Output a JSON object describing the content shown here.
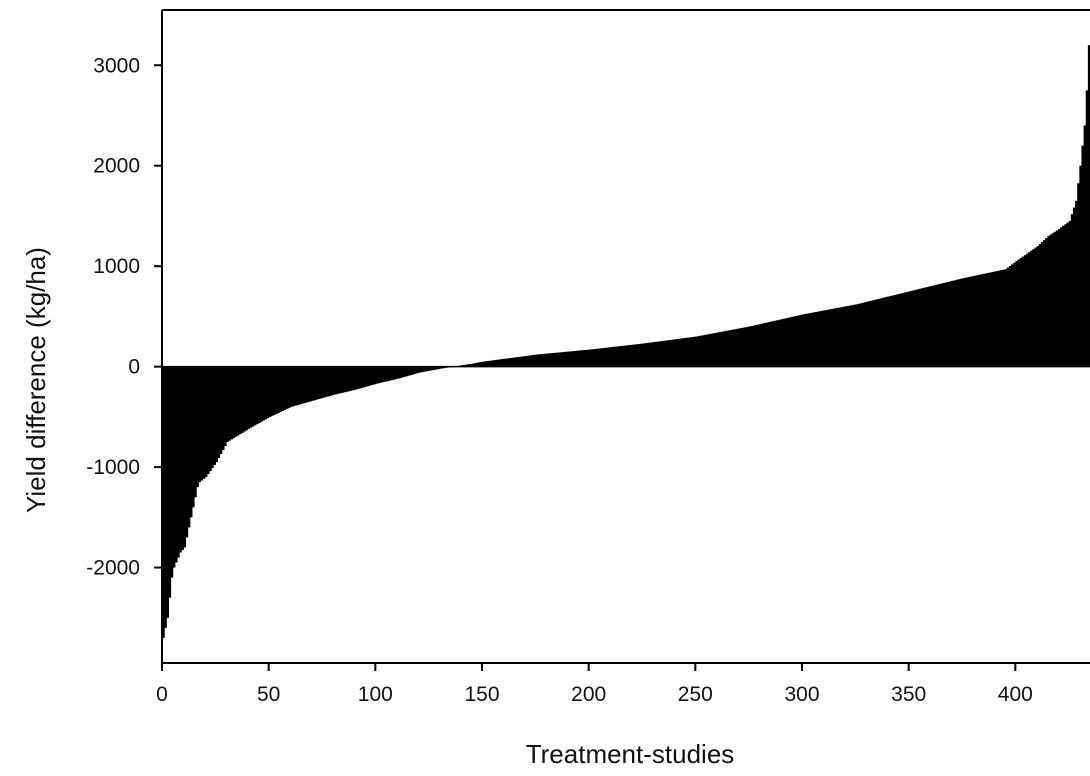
{
  "chart_data": {
    "type": "bar",
    "title": "",
    "xlabel": "Treatment-studies",
    "ylabel": "Yield difference (kg/ha)",
    "xlim": [
      0,
      435
    ],
    "ylim": [
      -2950,
      3550
    ],
    "x_ticks": [
      0,
      50,
      100,
      150,
      200,
      250,
      300,
      350,
      400
    ],
    "y_ticks": [
      -2000,
      -1000,
      0,
      1000,
      2000,
      3000
    ],
    "grid": false,
    "legend": "none",
    "bar_color": "#000000",
    "n": 435,
    "description_points": [
      [
        0,
        -2700
      ],
      [
        1,
        -2600
      ],
      [
        2,
        -2500
      ],
      [
        3,
        -2300
      ],
      [
        4,
        -2100
      ],
      [
        5,
        -2000
      ],
      [
        6,
        -1950
      ],
      [
        7,
        -1900
      ],
      [
        8,
        -1850
      ],
      [
        10,
        -1800
      ],
      [
        12,
        -1600
      ],
      [
        14,
        -1400
      ],
      [
        15,
        -1300
      ],
      [
        16,
        -1200
      ],
      [
        17,
        -1150
      ],
      [
        20,
        -1100
      ],
      [
        25,
        -950
      ],
      [
        30,
        -750
      ],
      [
        40,
        -620
      ],
      [
        50,
        -500
      ],
      [
        60,
        -400
      ],
      [
        70,
        -340
      ],
      [
        80,
        -280
      ],
      [
        90,
        -230
      ],
      [
        100,
        -170
      ],
      [
        110,
        -120
      ],
      [
        120,
        -60
      ],
      [
        130,
        -20
      ],
      [
        136,
        0
      ],
      [
        145,
        30
      ],
      [
        150,
        50
      ],
      [
        175,
        120
      ],
      [
        200,
        170
      ],
      [
        225,
        230
      ],
      [
        250,
        300
      ],
      [
        275,
        400
      ],
      [
        300,
        520
      ],
      [
        325,
        620
      ],
      [
        350,
        750
      ],
      [
        375,
        880
      ],
      [
        395,
        970
      ],
      [
        400,
        1050
      ],
      [
        410,
        1200
      ],
      [
        415,
        1300
      ],
      [
        420,
        1370
      ],
      [
        425,
        1450
      ],
      [
        428,
        1650
      ],
      [
        430,
        2000
      ],
      [
        432,
        2400
      ],
      [
        433,
        2750
      ],
      [
        434,
        3200
      ]
    ]
  }
}
